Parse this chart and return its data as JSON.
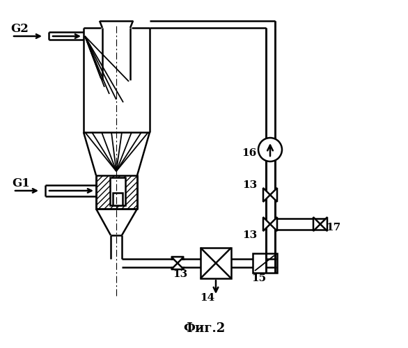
{
  "title": "Фиг.2",
  "background": "#ffffff",
  "line_color": "#000000",
  "lw": 1.8,
  "fig_width": 5.86,
  "fig_height": 5.0,
  "dpi": 100
}
